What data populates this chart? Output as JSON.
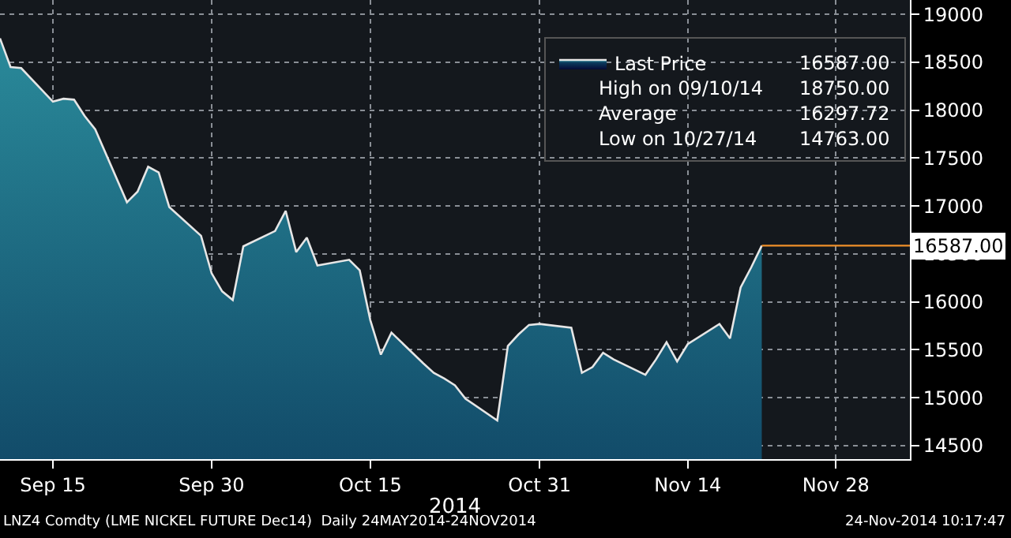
{
  "chart_data": {
    "type": "area",
    "x": [
      "2014-09-10",
      "2014-09-11",
      "2014-09-12",
      "2014-09-15",
      "2014-09-16",
      "2014-09-17",
      "2014-09-18",
      "2014-09-19",
      "2014-09-22",
      "2014-09-23",
      "2014-09-24",
      "2014-09-25",
      "2014-09-26",
      "2014-09-29",
      "2014-09-30",
      "2014-10-01",
      "2014-10-02",
      "2014-10-03",
      "2014-10-06",
      "2014-10-07",
      "2014-10-08",
      "2014-10-09",
      "2014-10-10",
      "2014-10-13",
      "2014-10-14",
      "2014-10-15",
      "2014-10-16",
      "2014-10-17",
      "2014-10-20",
      "2014-10-21",
      "2014-10-22",
      "2014-10-23",
      "2014-10-24",
      "2014-10-27",
      "2014-10-28",
      "2014-10-29",
      "2014-10-30",
      "2014-10-31",
      "2014-11-03",
      "2014-11-04",
      "2014-11-05",
      "2014-11-06",
      "2014-11-07",
      "2014-11-10",
      "2014-11-11",
      "2014-11-12",
      "2014-11-13",
      "2014-11-14",
      "2014-11-17",
      "2014-11-18",
      "2014-11-19",
      "2014-11-20",
      "2014-11-21"
    ],
    "series": [
      {
        "name": "Last Price",
        "color": "#e6e6e6",
        "values": [
          18750,
          18450,
          18440,
          18090,
          18120,
          18110,
          17940,
          17800,
          17040,
          17150,
          17410,
          17350,
          16990,
          16690,
          16300,
          16110,
          16020,
          16580,
          16740,
          16950,
          16520,
          16670,
          16380,
          16440,
          16330,
          15810,
          15450,
          15680,
          15360,
          15260,
          15200,
          15130,
          14990,
          14763,
          15540,
          15660,
          15760,
          15770,
          15730,
          15260,
          15320,
          15470,
          15400,
          15240,
          15400,
          15580,
          15380,
          15560,
          15770,
          15620,
          16150,
          16360,
          16587
        ]
      }
    ],
    "xlabel": "2014",
    "xlim": [
      "2014-09-10",
      "2014-12-05"
    ],
    "xticks": [
      {
        "value": "2014-09-15",
        "label": "Sep 15"
      },
      {
        "value": "2014-09-30",
        "label": "Sep 30"
      },
      {
        "value": "2014-10-15",
        "label": "Oct 15"
      },
      {
        "value": "2014-10-31",
        "label": "Oct 31"
      },
      {
        "value": "2014-11-14",
        "label": "Nov 14"
      },
      {
        "value": "2014-11-28",
        "label": "Nov 28"
      }
    ],
    "ylim": [
      14360,
      19150
    ],
    "yticks": [
      14500,
      15000,
      15500,
      16000,
      16500,
      17000,
      17500,
      18000,
      18500,
      19000
    ],
    "ref_lines": [
      {
        "axis": "y",
        "value": 16587,
        "label": "16587.00",
        "color": "#f0902a"
      }
    ],
    "annotations": [
      "16587.00",
      "High on 09/10/14",
      "18750.00",
      "Average",
      "16297.72",
      "Low on 10/27/14",
      "14763.00",
      "LNZ4 Comdty (LME NICKEL FUTURE Dec14)  Daily 24MAY2014-24NOV2014",
      "24-Nov-2014 10:17:47"
    ],
    "grid": true,
    "legend": "top right"
  }
}
